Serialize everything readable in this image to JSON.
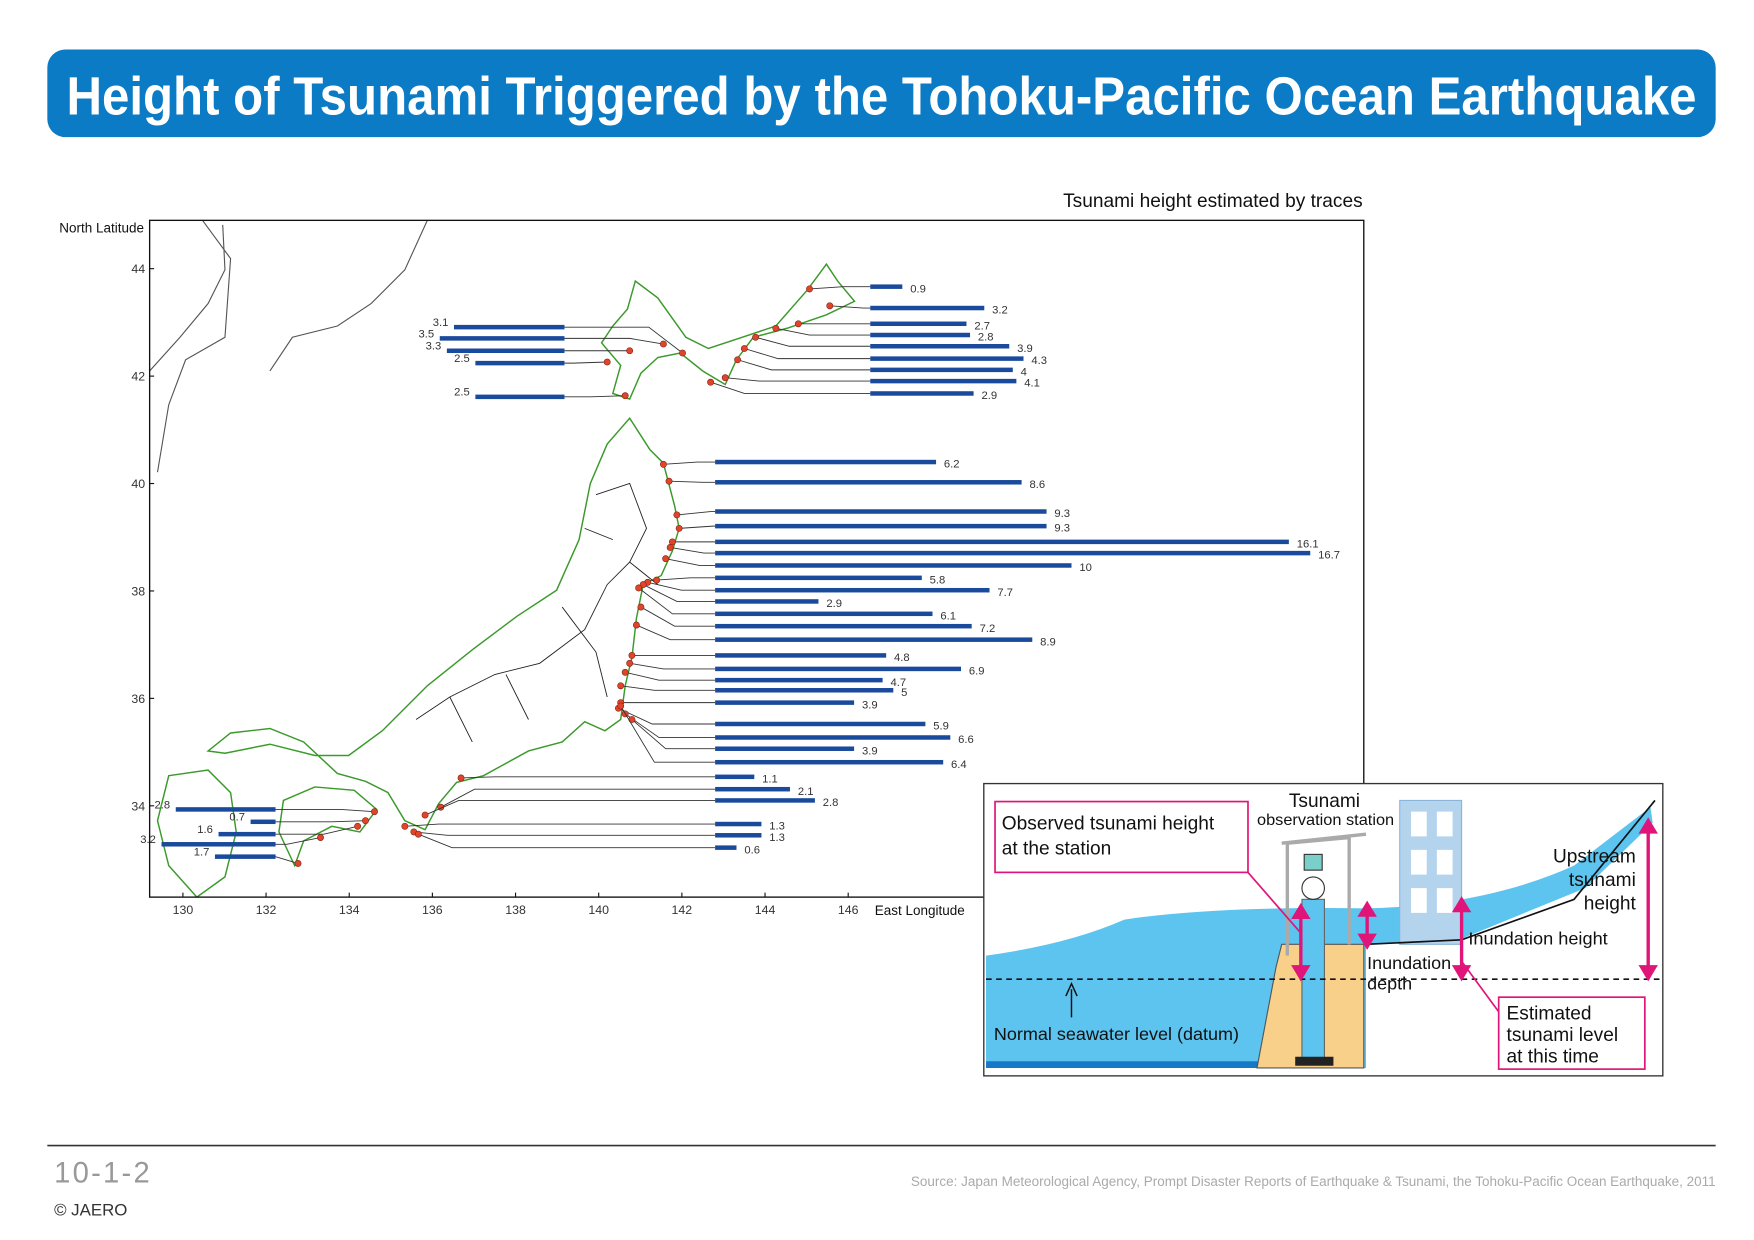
{
  "header": {
    "title": "Height of Tsunami Triggered by the Tohoku-Pacific Ocean Earthquake"
  },
  "chart_data": {
    "type": "bar",
    "subtitle": "Tsunami height estimated by traces",
    "y_label": "North Latitude",
    "x_label": "East Longitude",
    "xlim": [
      129.2,
      158.4
    ],
    "xticks": [
      130,
      132,
      134,
      136,
      138,
      140,
      142,
      144,
      146
    ],
    "ylim": [
      32.3,
      44.9
    ],
    "yticks": [
      34,
      36,
      38,
      40,
      42,
      44
    ],
    "grid": false,
    "color": "#1a4a9c",
    "point_color": "#e0452b",
    "coast_color": "#3a9a2a",
    "series": [
      {
        "values": [
          0.9,
          3.2,
          2.7,
          2.8,
          3.9,
          4.3,
          4,
          4.1,
          2.9
        ]
      },
      {
        "values": [
          3.1,
          3.5,
          3.3,
          2.5,
          2.5
        ]
      },
      {
        "values": [
          6.2,
          8.6,
          9.3,
          9.3,
          16.1,
          16.7,
          10,
          5.8,
          7.7,
          2.9,
          6.1,
          7.2,
          8.9,
          4.8,
          6.9,
          4.7,
          5,
          3.9,
          5.9,
          6.6,
          3.9,
          6.4,
          1.1,
          2.1,
          2.8,
          1.3,
          1.3,
          0.6
        ]
      },
      {
        "values": [
          2.8,
          0.7,
          1.6,
          3.2,
          1.7
        ]
      }
    ]
  },
  "diagram": {
    "station_title": "Tsunami",
    "station_subtitle": "observation station",
    "observed": [
      "Observed tsunami height",
      "at the station"
    ],
    "upstream": [
      "Upstream",
      "tsunami",
      "height"
    ],
    "inundation_height": "Inundation height",
    "inundation_depth": [
      "Inundation",
      "depth"
    ],
    "estimated": [
      "Estimated",
      "tsunami level",
      "at this time"
    ],
    "datum": "Normal seawater level (datum)"
  },
  "footer": {
    "page": "10-1-2",
    "copyright": "© JAERO",
    "source": "Source: Japan Meteorological Agency, Prompt Disaster Reports of Earthquake & Tsunami, the Tohoku-Pacific Ocean Earthquake, 2011"
  }
}
